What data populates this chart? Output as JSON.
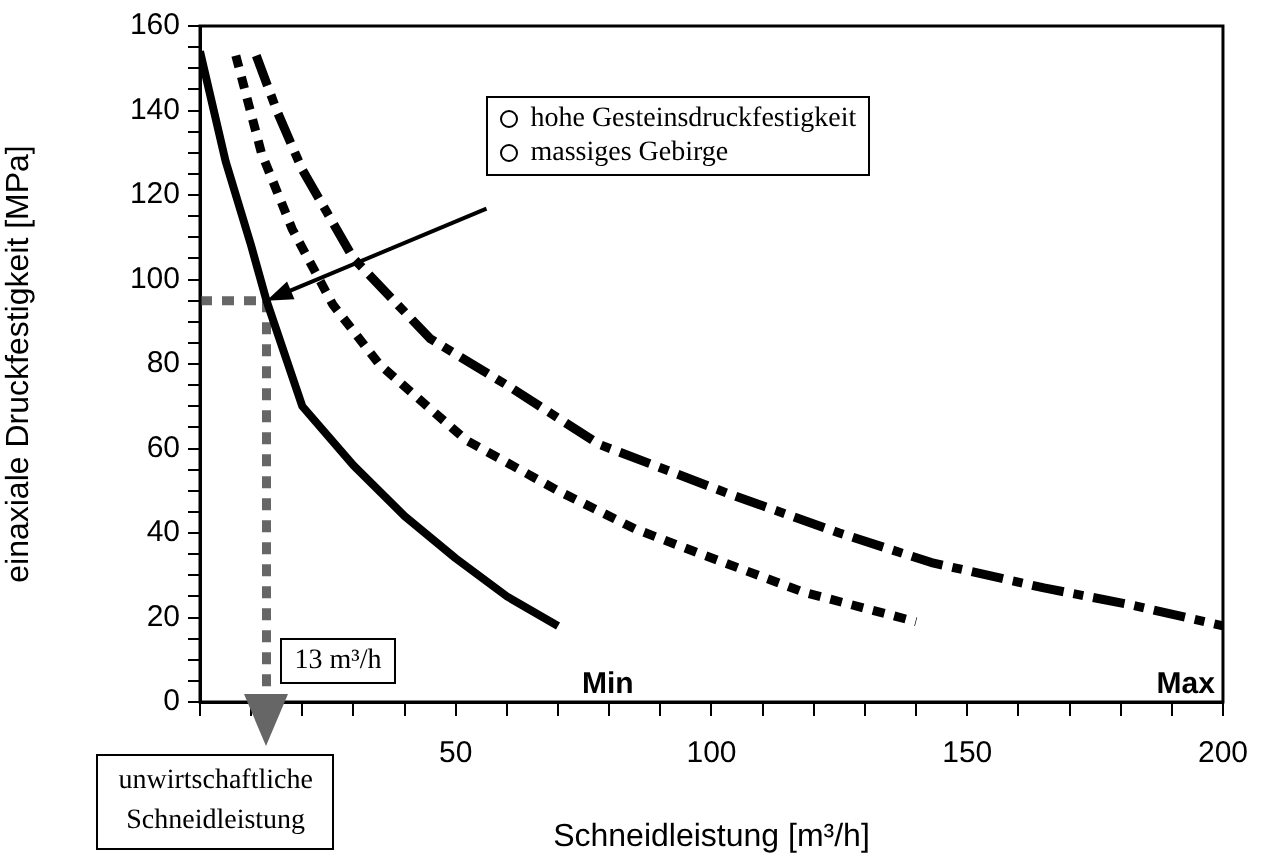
{
  "chart_data": {
    "type": "line",
    "xlabel": "Schneidleistung [m³/h]",
    "ylabel": "einaxiale Druckfestigkeit [MPa]",
    "xlim": [
      0,
      200
    ],
    "ylim": [
      0,
      160
    ],
    "xticks": [
      {
        "value": 0,
        "label": null
      },
      {
        "value": 10,
        "label": null
      },
      {
        "value": 20,
        "label": null
      },
      {
        "value": 30,
        "label": null
      },
      {
        "value": 40,
        "label": null
      },
      50,
      {
        "value": 60,
        "label": null
      },
      {
        "value": 70,
        "label": null
      },
      {
        "value": 80,
        "label": null
      },
      {
        "value": 90,
        "label": null
      },
      100,
      {
        "value": 110,
        "label": null
      },
      {
        "value": 120,
        "label": null
      },
      {
        "value": 130,
        "label": null
      },
      {
        "value": 140,
        "label": null
      },
      150,
      {
        "value": 160,
        "label": null
      },
      {
        "value": 170,
        "label": null
      },
      {
        "value": 180,
        "label": null
      },
      {
        "value": 190,
        "label": null
      },
      200
    ],
    "yticks": [
      0,
      {
        "value": 5,
        "label": null
      },
      {
        "value": 10,
        "label": null
      },
      {
        "value": 15,
        "label": null
      },
      20,
      {
        "value": 25,
        "label": null
      },
      {
        "value": 30,
        "label": null
      },
      {
        "value": 35,
        "label": null
      },
      40,
      {
        "value": 45,
        "label": null
      },
      {
        "value": 50,
        "label": null
      },
      {
        "value": 55,
        "label": null
      },
      60,
      {
        "value": 65,
        "label": null
      },
      {
        "value": 70,
        "label": null
      },
      {
        "value": 75,
        "label": null
      },
      80,
      {
        "value": 85,
        "label": null
      },
      {
        "value": 90,
        "label": null
      },
      {
        "value": 95,
        "label": null
      },
      100,
      {
        "value": 105,
        "label": null
      },
      {
        "value": 110,
        "label": null
      },
      {
        "value": 115,
        "label": null
      },
      120,
      {
        "value": 125,
        "label": null
      },
      {
        "value": 130,
        "label": null
      },
      {
        "value": 135,
        "label": null
      },
      140,
      {
        "value": 145,
        "label": null
      },
      {
        "value": 150,
        "label": null
      },
      {
        "value": 155,
        "label": null
      },
      160
    ],
    "grid": false,
    "legend": false,
    "marker": "none",
    "series": [
      {
        "name": "Min",
        "color": "#000000",
        "line_style": "solid",
        "x": [
          0,
          5,
          10,
          13,
          20,
          30,
          40,
          50,
          60,
          70
        ],
        "values": [
          154,
          128,
          108,
          95,
          70,
          56,
          44,
          34,
          25,
          18
        ]
      },
      {
        "color": "#000000",
        "line_style": "dotted",
        "x": [
          7,
          12,
          18,
          26,
          35,
          52,
          70,
          85,
          98,
          118,
          140
        ],
        "values": [
          153,
          130,
          112,
          94,
          80,
          62,
          50,
          41,
          35,
          26,
          19
        ]
      },
      {
        "name": "Max",
        "color": "#000000",
        "line_style": "dashed",
        "x": [
          11,
          15,
          20,
          30,
          45,
          60,
          78,
          104,
          125,
          143,
          165,
          182,
          200
        ],
        "values": [
          153,
          140,
          126,
          105,
          86,
          75,
          61,
          49,
          40,
          33,
          27,
          23,
          18
        ]
      },
      {
        "color": "#666666",
        "line_style": "dotted",
        "x": [
          0,
          13,
          13
        ],
        "values": [
          95,
          95,
          0
        ]
      }
    ],
    "annotations": [
      "13 m³/h",
      "unwirtschaftliche\nSchneidleistung",
      "hohe Gesteinsdruckfestigkeit\nmassiges Gebirge"
    ]
  }
}
